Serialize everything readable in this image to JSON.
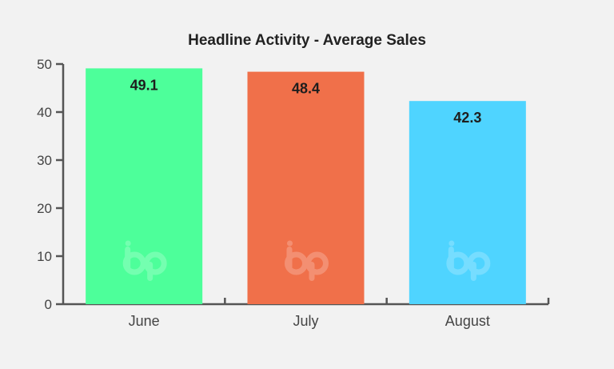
{
  "chart_data": {
    "type": "bar",
    "title": "Headline Activity - Average Sales",
    "categories": [
      "June",
      "July",
      "August"
    ],
    "values": [
      49.1,
      48.4,
      42.3
    ],
    "value_labels": [
      "49.1",
      "48.4",
      "42.3"
    ],
    "bar_colors": [
      "#4dff9a",
      "#f0704a",
      "#4fd4ff"
    ],
    "ylim": [
      0,
      50
    ],
    "y_ticks": [
      0,
      10,
      20,
      30,
      40,
      50
    ],
    "xlabel": "",
    "ylabel": "",
    "grid": false,
    "legend": "none",
    "watermark_icon": "bp-logo-icon"
  }
}
